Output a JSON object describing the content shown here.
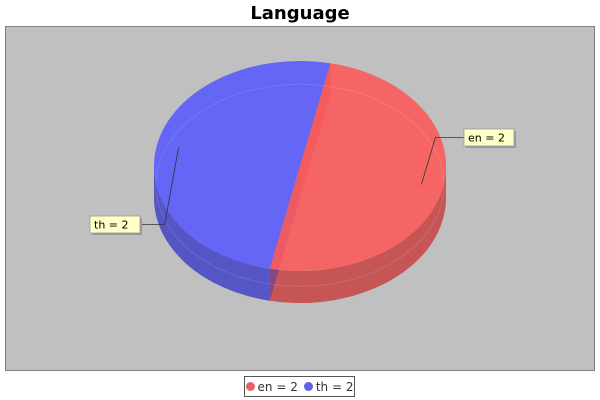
{
  "chart_data": {
    "type": "pie",
    "title": "Language",
    "style": "3d",
    "slices": [
      {
        "label": "en",
        "value": 2,
        "color": "#ff5555",
        "label_text": "en = 2"
      },
      {
        "label": "th",
        "value": 2,
        "color": "#5555ff",
        "label_text": "th = 2"
      }
    ],
    "legend": {
      "placement": "bottom",
      "entries": [
        "en = 2",
        "th = 2"
      ]
    },
    "plot_background": "#c0c0c0"
  }
}
